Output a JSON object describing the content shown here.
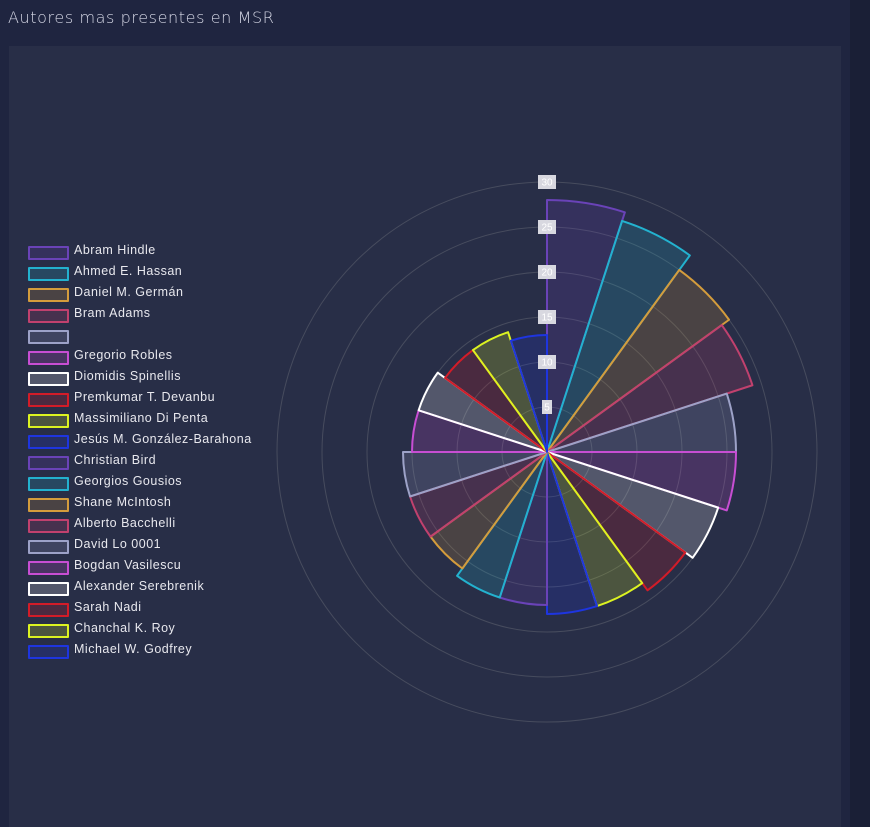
{
  "page": {
    "title": "Autores mas presentes en MSR"
  },
  "colors": {
    "background": "#1f2540",
    "card": "#282e47",
    "grid": "#474c5e",
    "text": "#e8e8ee"
  },
  "chart_data": {
    "type": "polarArea",
    "title": "",
    "rmax": 30,
    "tick_step": 5,
    "ticks": [
      "5",
      "10",
      "15",
      "20",
      "25",
      "30"
    ],
    "legend_position": "left",
    "categories": [
      "Abram Hindle",
      "Ahmed E. Hassan",
      "Daniel M. Germán",
      "Bram Adams",
      "",
      "Gregorio Robles",
      "Diomidis Spinellis",
      "Premkumar T. Devanbu",
      "Massimiliano Di Penta",
      "Jesús M. González-Barahona",
      "Christian Bird",
      "Georgios Gousios",
      "Shane McIntosh",
      "Alberto Bacchelli",
      "David Lo 0001",
      "Bogdan Vasilescu",
      "Alexander Serebrenik",
      "Sarah Nadi",
      "Chanchal K. Roy",
      "Michael W. Godfrey"
    ],
    "values": [
      28,
      27,
      25,
      24,
      21,
      21,
      20,
      19,
      18,
      18,
      17,
      17,
      16,
      16,
      16,
      15,
      15,
      14,
      14,
      13
    ],
    "border_colors": [
      "#6a43b8",
      "#23b2cf",
      "#d49c3c",
      "#c1416e",
      "#9da2c8",
      "#c74ed3",
      "#ffffff",
      "#d21c28",
      "#dcf321",
      "#1e35e0",
      "#6a43b8",
      "#23b2cf",
      "#d49c3c",
      "#c1416e",
      "#9da2c8",
      "#c74ed3",
      "#ffffff",
      "#d21c28",
      "#dcf321",
      "#1e35e0"
    ]
  }
}
